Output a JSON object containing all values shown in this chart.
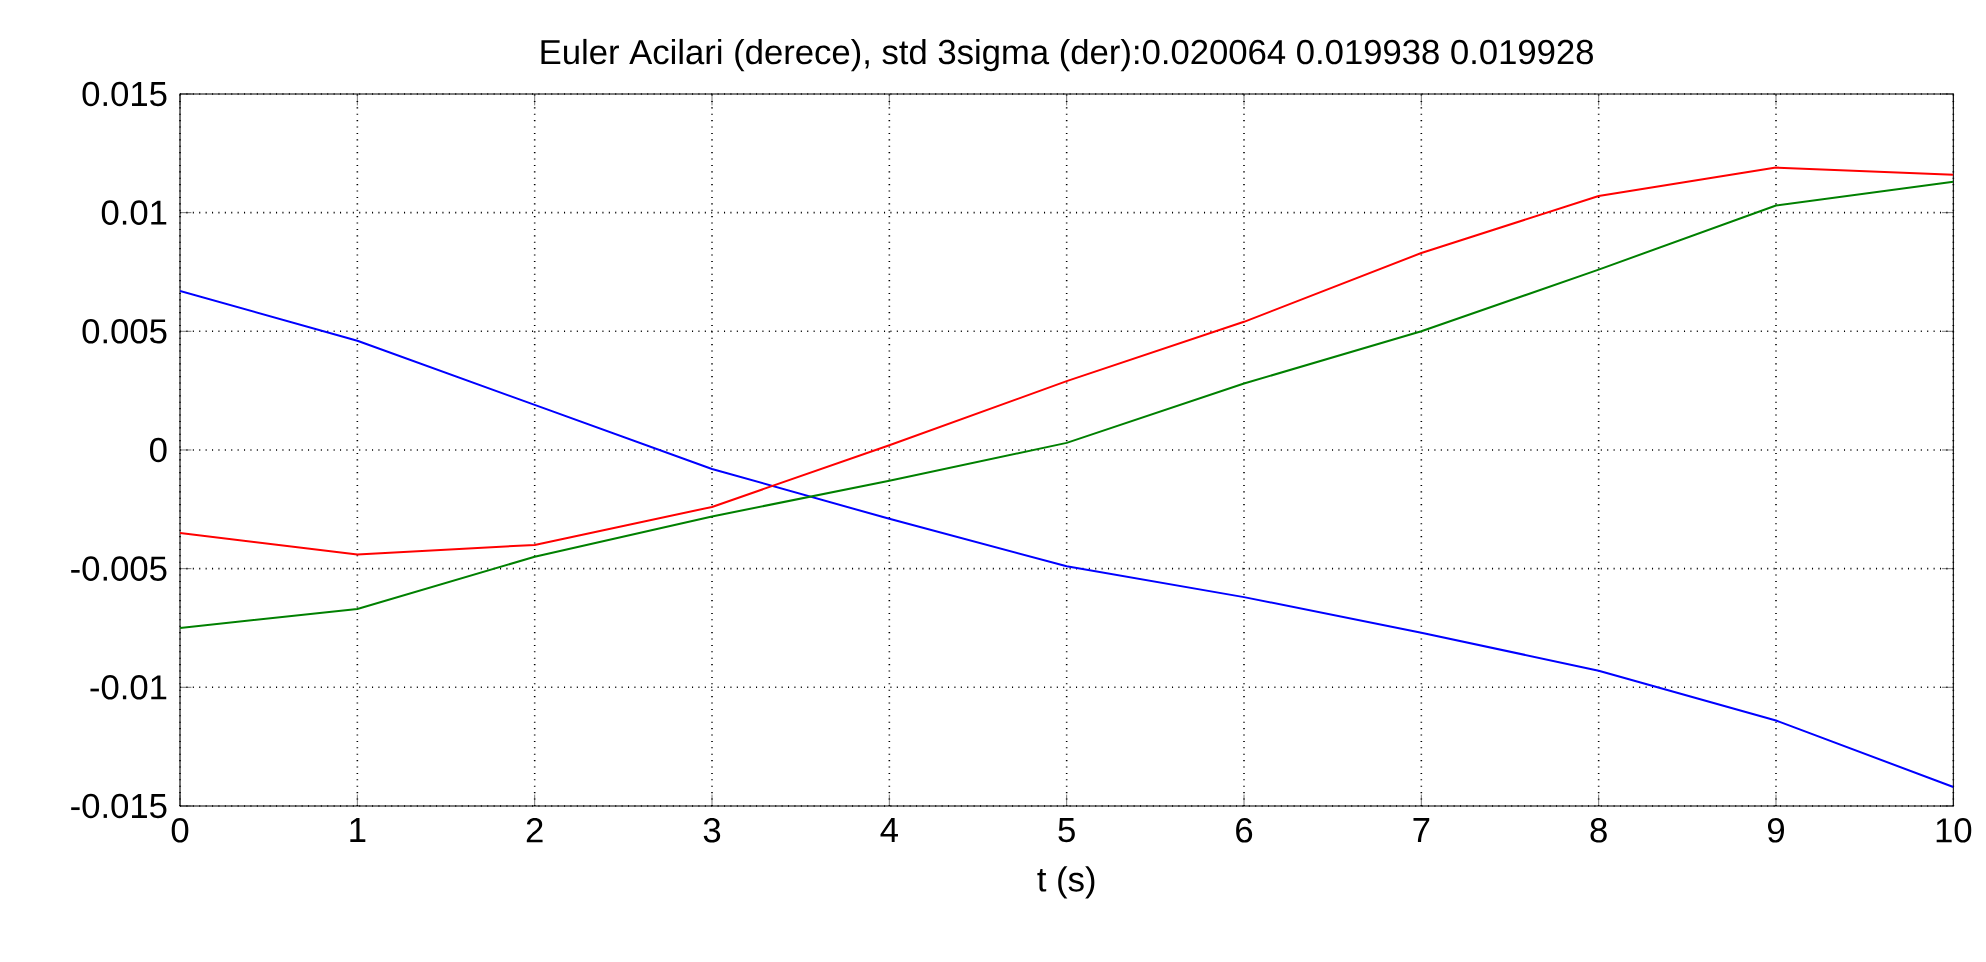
{
  "chart_data": {
    "type": "line",
    "title": "Euler Acilari (derece),  std 3sigma (der):0.020064     0.019938     0.019928",
    "xlabel": "t (s)",
    "x": [
      0,
      1,
      2,
      3,
      4,
      5,
      6,
      7,
      8,
      9,
      10
    ],
    "series": [
      {
        "color": "#0000ff",
        "values": [
          0.0067,
          0.0046,
          0.0019,
          -0.0008,
          -0.0029,
          -0.0049,
          -0.0062,
          -0.0077,
          -0.0093,
          -0.0114,
          -0.0142
        ]
      },
      {
        "color": "#ff0000",
        "values": [
          -0.0035,
          -0.0044,
          -0.004,
          -0.0024,
          0.0002,
          0.0029,
          0.0054,
          0.0083,
          0.0107,
          0.0119,
          0.0116
        ]
      },
      {
        "color": "#008000",
        "values": [
          -0.0075,
          -0.0067,
          -0.0045,
          -0.0028,
          -0.0013,
          0.0003,
          0.0028,
          0.005,
          0.0076,
          0.0103,
          0.0113
        ]
      }
    ],
    "xlim": [
      0,
      10
    ],
    "ylim": [
      -0.015,
      0.015
    ],
    "xticks": [
      0,
      1,
      2,
      3,
      4,
      5,
      6,
      7,
      8,
      9,
      10
    ],
    "yticks": [
      -0.015,
      -0.01,
      -0.005,
      0,
      0.005,
      0.01,
      0.015
    ],
    "grid": true,
    "marker": "none",
    "line_style": "solid"
  }
}
